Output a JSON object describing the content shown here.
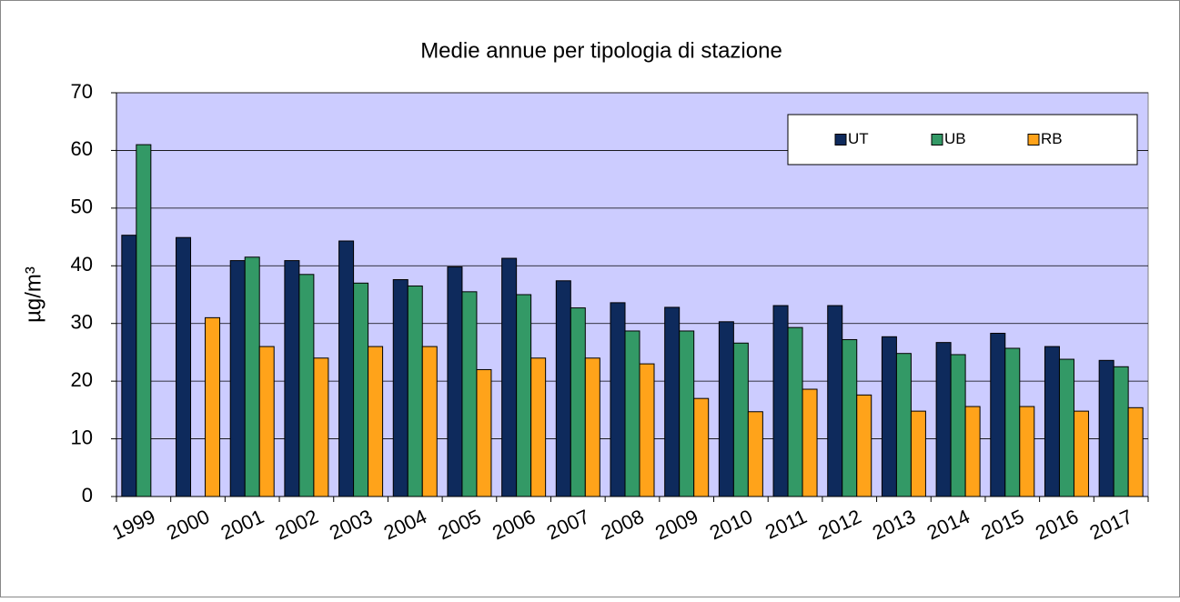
{
  "chart_data": {
    "type": "bar",
    "title": "Medie annue per tipologia di stazione",
    "y_label": "µg/m³",
    "categories": [
      "1999",
      "2000",
      "2001",
      "2002",
      "2003",
      "2004",
      "2005",
      "2006",
      "2007",
      "2008",
      "2009",
      "2010",
      "2011",
      "2012",
      "2013",
      "2014",
      "2015",
      "2016",
      "2017"
    ],
    "series": [
      {
        "name": "UT",
        "color": "#0e2a5c",
        "values": [
          45.3,
          44.9,
          40.9,
          40.9,
          44.3,
          37.6,
          39.8,
          41.3,
          37.4,
          33.6,
          32.8,
          30.3,
          33.1,
          33.1,
          27.7,
          26.7,
          28.3,
          26.0,
          23.6
        ]
      },
      {
        "name": "UB",
        "color": "#339966",
        "values": [
          61.0,
          null,
          41.5,
          38.5,
          37.0,
          36.5,
          35.5,
          35.0,
          32.7,
          28.7,
          28.7,
          26.6,
          29.3,
          27.2,
          24.8,
          24.6,
          25.7,
          23.8,
          22.5
        ]
      },
      {
        "name": "RB",
        "color": "#ffa31a",
        "values": [
          null,
          31.0,
          26.0,
          24.0,
          26.0,
          26.0,
          22.0,
          24.0,
          24.0,
          23.0,
          17.0,
          14.7,
          18.6,
          17.6,
          14.8,
          15.6,
          15.6,
          14.8,
          15.4
        ]
      }
    ],
    "ylim": [
      0,
      70
    ],
    "yticks": [
      0,
      10,
      20,
      30,
      40,
      50,
      60,
      70
    ],
    "grid": true,
    "legend": "upper right",
    "plot_background": "#ccccff"
  }
}
